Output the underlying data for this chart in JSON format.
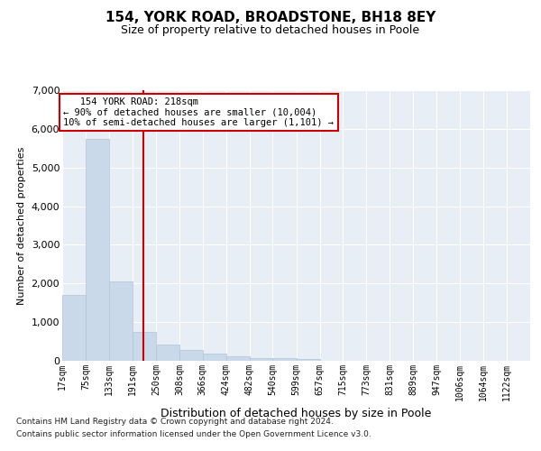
{
  "title1": "154, YORK ROAD, BROADSTONE, BH18 8EY",
  "title2": "Size of property relative to detached houses in Poole",
  "xlabel": "Distribution of detached houses by size in Poole",
  "ylabel": "Number of detached properties",
  "footnote1": "Contains HM Land Registry data © Crown copyright and database right 2024.",
  "footnote2": "Contains public sector information licensed under the Open Government Licence v3.0.",
  "annotation_line1": "   154 YORK ROAD: 218sqm",
  "annotation_line2": "← 90% of detached houses are smaller (10,004)",
  "annotation_line3": "10% of semi-detached houses are larger (1,101) →",
  "bar_color": "#c9d9ea",
  "bar_edge_color": "#b0c4d8",
  "vline_color": "#cc0000",
  "annotation_box_edge": "#cc0000",
  "bins": [
    17,
    75,
    133,
    191,
    250,
    308,
    366,
    424,
    482,
    540,
    599,
    657,
    715,
    773,
    831,
    889,
    947,
    1006,
    1064,
    1122,
    1180
  ],
  "values": [
    1700,
    5750,
    2050,
    750,
    430,
    290,
    180,
    110,
    65,
    60,
    50,
    0,
    0,
    0,
    0,
    0,
    0,
    0,
    0,
    0
  ],
  "vline_x": 218,
  "ylim": [
    0,
    7000
  ],
  "yticks": [
    0,
    1000,
    2000,
    3000,
    4000,
    5000,
    6000,
    7000
  ],
  "xlim": [
    17,
    1180
  ],
  "background_color": "#ffffff",
  "plot_bg_color": "#e8eef5",
  "grid_color": "#ffffff",
  "title1_fontsize": 11,
  "title2_fontsize": 9,
  "ylabel_fontsize": 8,
  "xlabel_fontsize": 9,
  "tick_fontsize": 7,
  "ytick_fontsize": 8,
  "footnote_fontsize": 6.5,
  "annot_fontsize": 7.5
}
